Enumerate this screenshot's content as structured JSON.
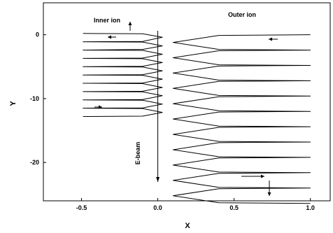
{
  "chart_data": {
    "type": "line",
    "xlabel": "X",
    "ylabel": "Y",
    "xlim": [
      -0.75,
      1.13
    ],
    "ylim": [
      -26.0,
      5.0
    ],
    "xticks": [
      -0.5,
      0.0,
      0.5,
      1.0
    ],
    "xtick_labels": [
      "-0.5",
      "0.0",
      "0.5",
      "1.0"
    ],
    "yticks": [
      0,
      -10,
      -20
    ],
    "ytick_labels": [
      "0",
      "-10",
      "-20"
    ],
    "grid": false,
    "annotations": {
      "inner_ion": "Inner ion",
      "outer_ion": "Outer ion",
      "e_beam": "E-beam"
    },
    "series": [
      {
        "name": "Inner ion",
        "x": [
          -0.49,
          -0.1,
          0.03,
          -0.1,
          -0.49,
          -0.1,
          0.03,
          -0.1,
          -0.49,
          -0.1,
          0.03,
          -0.1,
          -0.49,
          -0.1,
          0.03,
          -0.1,
          -0.49,
          -0.1,
          0.03,
          -0.1,
          -0.49,
          -0.1,
          0.03,
          -0.1,
          -0.49,
          -0.1,
          0.03,
          -0.1,
          -0.49,
          -0.1,
          0.03,
          -0.1,
          -0.49,
          -0.1,
          0.03,
          -0.1,
          -0.49,
          -0.1,
          0.03,
          -0.1,
          -0.49
        ],
        "y": [
          0.2,
          0.15,
          -0.4,
          -1.05,
          -1.1,
          -1.15,
          -1.75,
          -2.3,
          -2.4,
          -2.45,
          -3.05,
          -3.65,
          -3.7,
          -3.75,
          -4.35,
          -4.95,
          -5.0,
          -5.05,
          -5.65,
          -6.25,
          -6.3,
          -6.35,
          -6.95,
          -7.55,
          -7.6,
          -7.65,
          -8.25,
          -8.85,
          -8.9,
          -8.95,
          -9.55,
          -10.15,
          -10.2,
          -10.25,
          -10.85,
          -11.45,
          -11.5,
          -11.55,
          -12.15,
          -12.75,
          -12.8
        ]
      },
      {
        "name": "Outer ion",
        "x": [
          1.0,
          0.4,
          0.1,
          0.4,
          1.0,
          0.4,
          0.1,
          0.4,
          1.0,
          0.4,
          0.1,
          0.4,
          1.0,
          0.4,
          0.1,
          0.4,
          1.0,
          0.4,
          0.1,
          0.4,
          1.0,
          0.4,
          0.1,
          0.4,
          1.0,
          0.4,
          0.1,
          0.4,
          1.0,
          0.4,
          0.1,
          0.4,
          1.0,
          0.4,
          0.1,
          0.4,
          1.0,
          0.4,
          0.1,
          0.4,
          1.0,
          0.4,
          0.1,
          0.4,
          1.0
        ],
        "y": [
          0.0,
          -0.1,
          -1.2,
          -2.3,
          -2.4,
          -2.5,
          -3.6,
          -4.7,
          -4.8,
          -4.9,
          -6.0,
          -7.1,
          -7.2,
          -7.3,
          -8.4,
          -9.5,
          -9.6,
          -9.7,
          -10.8,
          -11.9,
          -12.0,
          -12.1,
          -13.2,
          -14.3,
          -14.4,
          -14.5,
          -15.6,
          -16.7,
          -16.8,
          -16.9,
          -18.0,
          -19.1,
          -19.2,
          -19.3,
          -20.4,
          -21.5,
          -21.6,
          -21.7,
          -22.8,
          -23.9,
          -24.0,
          -24.1,
          -25.2,
          -26.3,
          -26.4
        ]
      }
    ]
  }
}
